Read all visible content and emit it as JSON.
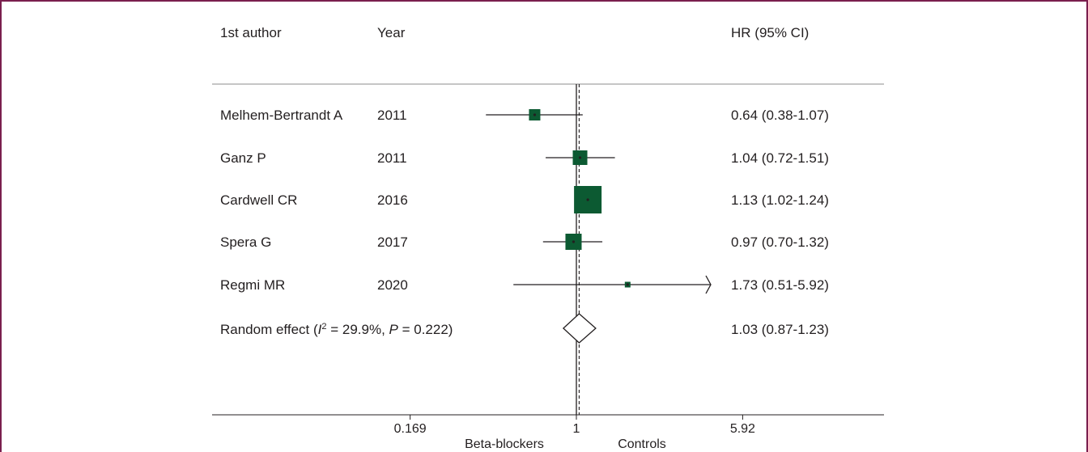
{
  "colors": {
    "frame": "#7a1f4e",
    "box": "#0c5a32",
    "ink": "#231f20"
  },
  "headers": {
    "author": "1st author",
    "year": "Year",
    "effect": "HR (95% CI)"
  },
  "chart_data": {
    "type": "forest",
    "scale": "log",
    "null_value": 1,
    "pooled_value": 1.03,
    "studies": [
      {
        "author": "Melhem-Bertrandt A",
        "year": "2011",
        "hr": 0.64,
        "lo": 0.38,
        "hi": 1.07,
        "ci_text": "0.64 (0.38-1.07)"
      },
      {
        "author": "Ganz P",
        "year": "2011",
        "hr": 1.04,
        "lo": 0.72,
        "hi": 1.51,
        "ci_text": "1.04 (0.72-1.51)"
      },
      {
        "author": "Cardwell CR",
        "year": "2016",
        "hr": 1.13,
        "lo": 1.02,
        "hi": 1.24,
        "ci_text": "1.13 (1.02-1.24)"
      },
      {
        "author": "Spera G",
        "year": "2017",
        "hr": 0.97,
        "lo": 0.7,
        "hi": 1.32,
        "ci_text": "0.97 (0.70-1.32)"
      },
      {
        "author": "Regmi MR",
        "year": "2020",
        "hr": 1.73,
        "lo": 0.51,
        "hi": 5.92,
        "ci_text": "1.73 (0.51-5.92)"
      }
    ],
    "pooled": {
      "label_prefix": "Random effect (",
      "i2_symbol": "I",
      "i2_sup": "2",
      "i2_text": " = 29.9%, ",
      "p_symbol": "P",
      "p_text": " = 0.222)",
      "hr": 1.03,
      "lo": 0.87,
      "hi": 1.23,
      "ci_text": "1.03 (0.87-1.23)"
    },
    "axis": {
      "ticks": [
        {
          "label": "0.169",
          "value": 0.169
        },
        {
          "label": "1",
          "value": 1
        },
        {
          "label": "5.92",
          "value": 5.92
        }
      ],
      "left_label": "Beta-blockers",
      "right_label": "Controls"
    }
  }
}
